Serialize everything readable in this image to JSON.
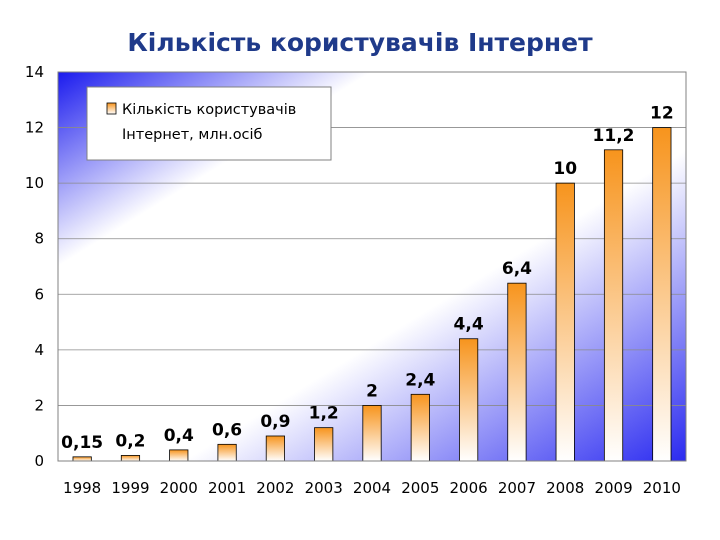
{
  "chart_data": {
    "type": "bar",
    "title": "Кількість користувачів Інтернет",
    "categories": [
      "1998",
      "1999",
      "2000",
      "2001",
      "2002",
      "2003",
      "2004",
      "2005",
      "2006",
      "2007",
      "2008",
      "2009",
      "2010"
    ],
    "series": [
      {
        "name": "Кількість користувачів Інтернет, млн.осіб",
        "values": [
          0.15,
          0.2,
          0.4,
          0.6,
          0.9,
          1.2,
          2,
          2.4,
          4.4,
          6.4,
          10,
          11.2,
          12
        ],
        "labels": [
          "0,15",
          "0,2",
          "0,4",
          "0,6",
          "0,9",
          "1,2",
          "2",
          "2,4",
          "4,4",
          "6,4",
          "10",
          "11,2",
          "12"
        ]
      }
    ],
    "legend": {
      "line1": "Кількість користувачів",
      "line2": "Інтернет, млн.осіб",
      "position": "top-left"
    },
    "yticks": [
      "0",
      "2",
      "4",
      "6",
      "8",
      "10",
      "12",
      "14"
    ],
    "ylim": [
      0,
      14
    ],
    "grid": true,
    "colors": {
      "bar_top": "#f7941d",
      "bar_bottom": "#ffffff",
      "plot_bg_light": "#ffffff",
      "plot_bg_dark": "#1a1aee",
      "title": "#1f3a8a"
    }
  }
}
